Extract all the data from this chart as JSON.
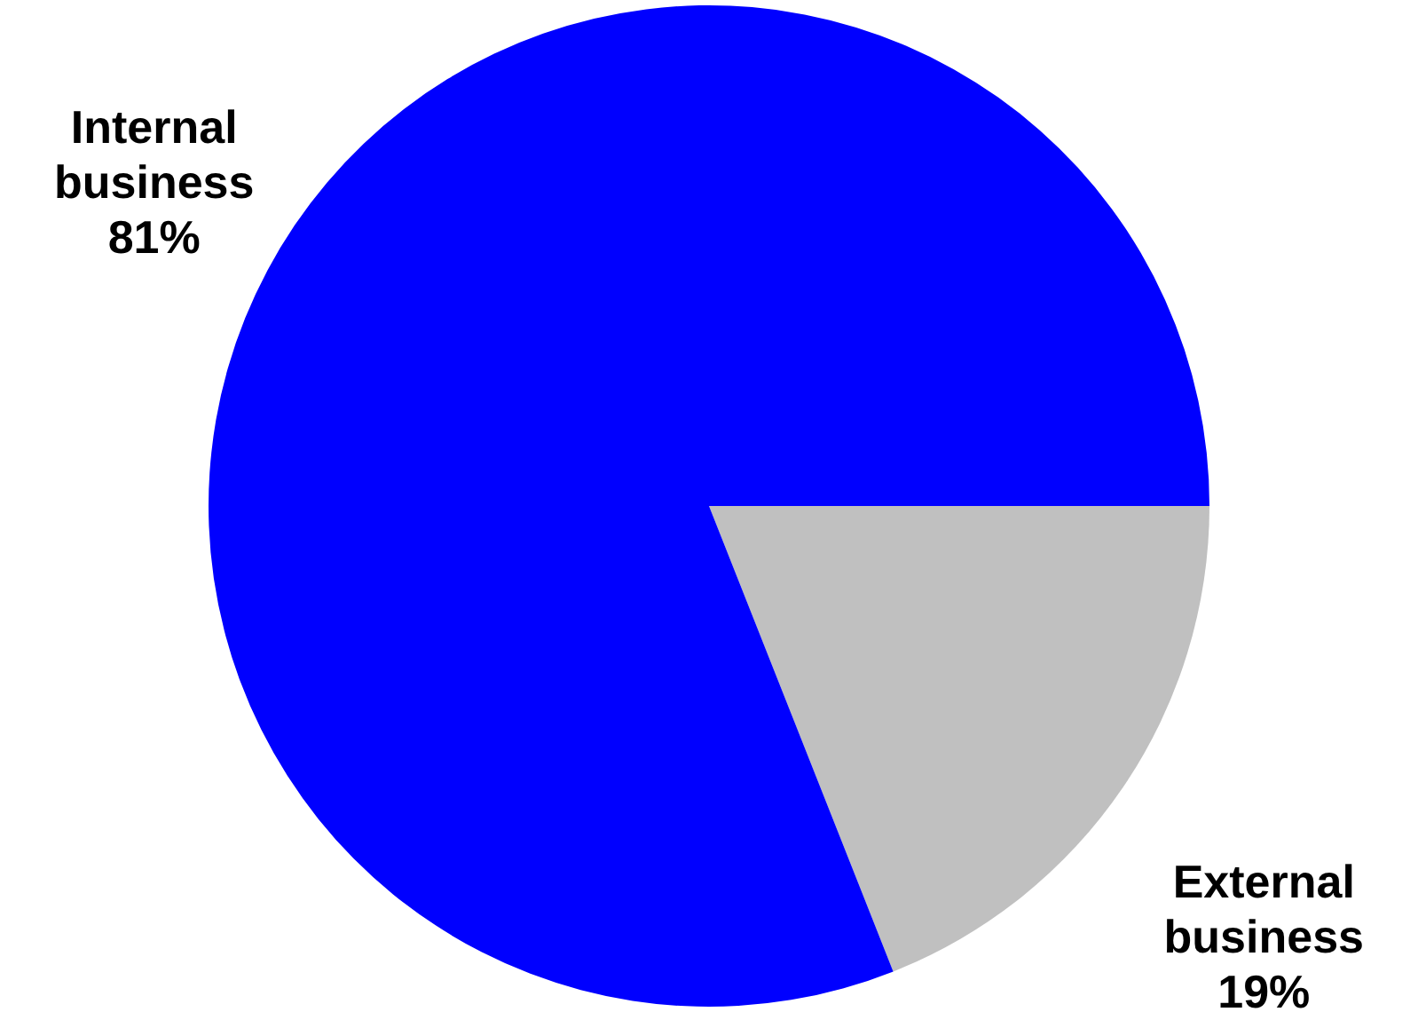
{
  "chart_data": {
    "type": "pie",
    "categories": [
      "External business",
      "Internal business"
    ],
    "values": [
      19,
      81
    ],
    "colors": [
      "#c0c0c0",
      "#0000ff"
    ],
    "value_labels": [
      "19%",
      "81%"
    ]
  }
}
